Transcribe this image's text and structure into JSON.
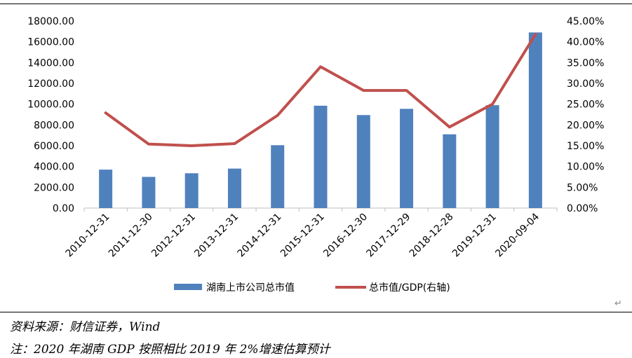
{
  "chart_data": {
    "type": "bar",
    "categories": [
      "2010-12-31",
      "2011-12-30",
      "2012-12-31",
      "2013-12-31",
      "2014-12-31",
      "2015-12-31",
      "2016-12-30",
      "2017-12-29",
      "2018-12-28",
      "2019-12-31",
      "2020-09-04"
    ],
    "series": [
      {
        "name": "湖南上市公司总市值",
        "type": "bar",
        "axis": "left",
        "color": "#4f81bd",
        "values": [
          3700,
          3000,
          3350,
          3800,
          6050,
          9850,
          8950,
          9550,
          7100,
          9900,
          16900
        ]
      },
      {
        "name": "总市值/GDP(右轴)",
        "type": "line",
        "axis": "right",
        "color": "#c0504d",
        "values": [
          0.229,
          0.154,
          0.15,
          0.155,
          0.223,
          0.34,
          0.283,
          0.283,
          0.195,
          0.25,
          0.418
        ]
      }
    ],
    "y_left": {
      "min": 0,
      "max": 18000,
      "step": 2000,
      "ticks": [
        "0.00",
        "2000.00",
        "4000.00",
        "6000.00",
        "8000.00",
        "10000.00",
        "12000.00",
        "14000.00",
        "16000.00",
        "18000.00"
      ]
    },
    "y_right": {
      "min": 0,
      "max": 0.45,
      "step": 0.05,
      "ticks": [
        "0.00%",
        "5.00%",
        "10.00%",
        "15.00%",
        "20.00%",
        "25.00%",
        "30.00%",
        "35.00%",
        "40.00%",
        "45.00%"
      ]
    },
    "grid": false,
    "legend_position": "bottom"
  },
  "footnotes": {
    "source": "资料来源：财信证券，Wind",
    "note": "注：2020 年湖南 GDP 按照相比 2019 年 2%增速估算预计"
  },
  "marks": {
    "return_symbol": "↵"
  }
}
